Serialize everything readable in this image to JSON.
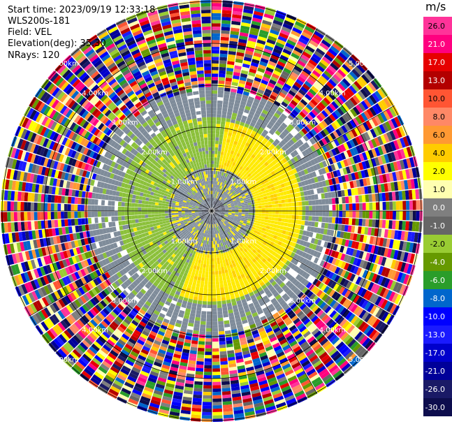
{
  "header": {
    "start_time": "Start time: 2023/09/19 12:33:18",
    "instrument": "WLS200s-181",
    "field": "Field: VEL",
    "elevation": "Elevation(deg): 35.30",
    "nrays": "NRays: 120"
  },
  "chart_data": {
    "type": "heatmap",
    "projection": "polar PPI",
    "field": "VEL",
    "units": "m/s",
    "nrays": 120,
    "range_rings_km": [
      "1.00km",
      "2.00km",
      "3.00km",
      "4.00km",
      "5.00km"
    ],
    "colorbar": {
      "label": "m/s",
      "levels": [
        "26.0",
        "21.0",
        "17.0",
        "13.0",
        "10.0",
        "8.0",
        "6.0",
        "4.0",
        "2.0",
        "1.0",
        "0.0",
        "-1.0",
        "-2.0",
        "-4.0",
        "-6.0",
        "-8.0",
        "-10.0",
        "-13.0",
        "-17.0",
        "-21.0",
        "-26.0",
        "-30.0"
      ],
      "colors": [
        "#ff3399",
        "#ff007f",
        "#e60000",
        "#b30000",
        "#ff5533",
        "#ff8866",
        "#ff9933",
        "#ffcc00",
        "#ffff00",
        "#ffffb0",
        "#7f7f7f",
        "#666666",
        "#99cc33",
        "#669900",
        "#2a9d2a",
        "#0066cc",
        "#0000ff",
        "#1a1aff",
        "#0000cc",
        "#000099",
        "#1a1a66",
        "#0d0d4d"
      ]
    },
    "pattern": {
      "inner_ring_gray_km": 1.0,
      "green_band_km": [
        0.9,
        2.2
      ],
      "yellow_arc_km": [
        1.0,
        2.1
      ],
      "noise_start_km": 3.0
    }
  }
}
